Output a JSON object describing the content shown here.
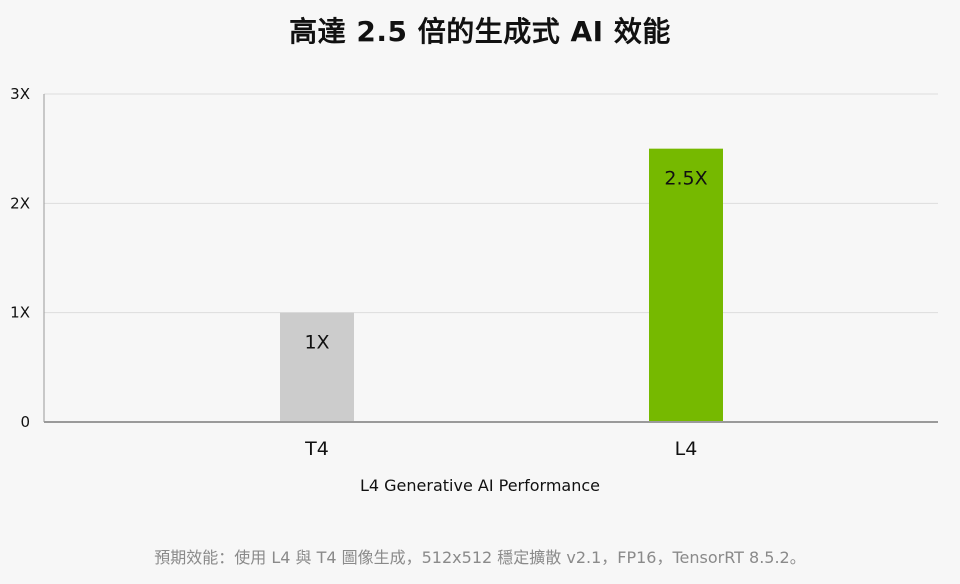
{
  "title": "高達 2.5 倍的生成式 AI 效能",
  "footnote": "預期效能：使用 L4 與 T4 圖像生成，512x512 穩定擴散 v2.1，FP16，TensorRT 8.5.2。",
  "colors": {
    "gridline": "#dcdcdc",
    "axis": "#9a9a9a",
    "t4_bar": "#cccccc",
    "l4_bar": "#76b900",
    "text": "#111111"
  },
  "chart_data": {
    "type": "bar",
    "title": "高達 2.5 倍的生成式 AI 效能",
    "xlabel": "L4 Generative AI Performance",
    "ylabel": "",
    "categories": [
      "T4",
      "L4"
    ],
    "values": [
      1,
      2.5
    ],
    "data_labels": [
      "1X",
      "2.5X"
    ],
    "ylim": [
      0,
      3
    ],
    "yticks": [
      0,
      1,
      2,
      3
    ],
    "ytick_labels": [
      "0",
      "1X",
      "2X",
      "3X"
    ],
    "grid": true,
    "legend": "none"
  }
}
